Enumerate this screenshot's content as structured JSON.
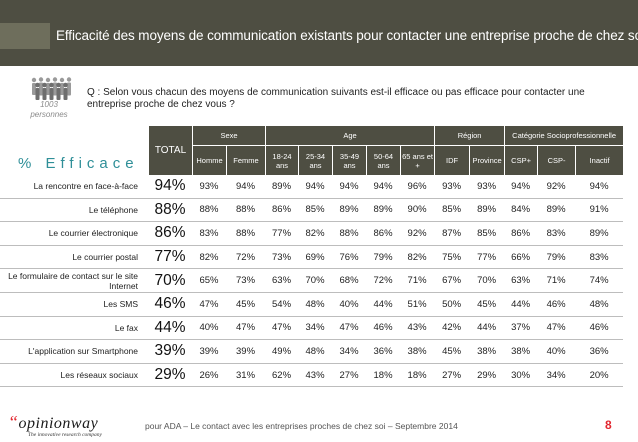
{
  "title": "Efficacité des moyens de communication existants pour contacter une entreprise proche de chez soi",
  "sample": {
    "count": "1003",
    "unit": "personnes"
  },
  "question": "Q : Selon vous chacun des moyens de communication suivants est-il efficace ou pas efficace pour contacter une entreprise proche de chez vous ?",
  "table": {
    "corner_label": "% Efficace",
    "total_label": "TOTAL",
    "groups": {
      "sexe": "Sexe",
      "age": "Age",
      "region": "Région",
      "csp": "Catégorie Socioprofessionnelle"
    },
    "columns": [
      "Homme",
      "Femme",
      "18-24 ans",
      "25-34 ans",
      "35-49 ans",
      "50-64 ans",
      "65 ans et +",
      "IDF",
      "Province",
      "CSP+",
      "CSP-",
      "Inactif"
    ],
    "rows": [
      {
        "label": "La rencontre en face-à-face",
        "total": "94%",
        "values": [
          "93%",
          "94%",
          "89%",
          "94%",
          "94%",
          "94%",
          "96%",
          "93%",
          "93%",
          "94%",
          "92%",
          "94%"
        ]
      },
      {
        "label": "Le téléphone",
        "total": "88%",
        "values": [
          "88%",
          "88%",
          "86%",
          "85%",
          "89%",
          "89%",
          "90%",
          "85%",
          "89%",
          "84%",
          "89%",
          "91%"
        ]
      },
      {
        "label": "Le courrier électronique",
        "total": "86%",
        "values": [
          "83%",
          "88%",
          "77%",
          "82%",
          "88%",
          "86%",
          "92%",
          "87%",
          "85%",
          "86%",
          "83%",
          "89%"
        ]
      },
      {
        "label": "Le courrier postal",
        "total": "77%",
        "values": [
          "82%",
          "72%",
          "73%",
          "69%",
          "76%",
          "79%",
          "82%",
          "75%",
          "77%",
          "66%",
          "79%",
          "83%"
        ]
      },
      {
        "label": "Le formulaire de contact sur le site Internet",
        "total": "70%",
        "values": [
          "65%",
          "73%",
          "63%",
          "70%",
          "68%",
          "72%",
          "71%",
          "67%",
          "70%",
          "63%",
          "71%",
          "74%"
        ]
      },
      {
        "label": "Les SMS",
        "total": "46%",
        "values": [
          "47%",
          "45%",
          "54%",
          "48%",
          "40%",
          "44%",
          "51%",
          "50%",
          "45%",
          "44%",
          "46%",
          "48%"
        ]
      },
      {
        "label": "Le fax",
        "total": "44%",
        "values": [
          "40%",
          "47%",
          "47%",
          "34%",
          "47%",
          "46%",
          "43%",
          "42%",
          "44%",
          "37%",
          "47%",
          "46%"
        ]
      },
      {
        "label": "L'application sur Smartphone",
        "total": "39%",
        "values": [
          "39%",
          "39%",
          "49%",
          "48%",
          "34%",
          "36%",
          "38%",
          "45%",
          "38%",
          "38%",
          "40%",
          "36%"
        ]
      },
      {
        "label": "Les réseaux sociaux",
        "total": "29%",
        "values": [
          "26%",
          "31%",
          "62%",
          "43%",
          "27%",
          "18%",
          "18%",
          "27%",
          "29%",
          "30%",
          "34%",
          "20%"
        ]
      }
    ]
  },
  "footer": {
    "brand": "opinionway",
    "brand_quote": "“",
    "tagline": "The innovative research company",
    "text": "pour ADA – Le contact avec les entreprises proches de chez soi – Septembre 2014",
    "page": "8"
  },
  "colors": {
    "header_bg": "#4e4e42",
    "accent_teal": "#2f8f98",
    "brand_red": "#e2272f"
  }
}
